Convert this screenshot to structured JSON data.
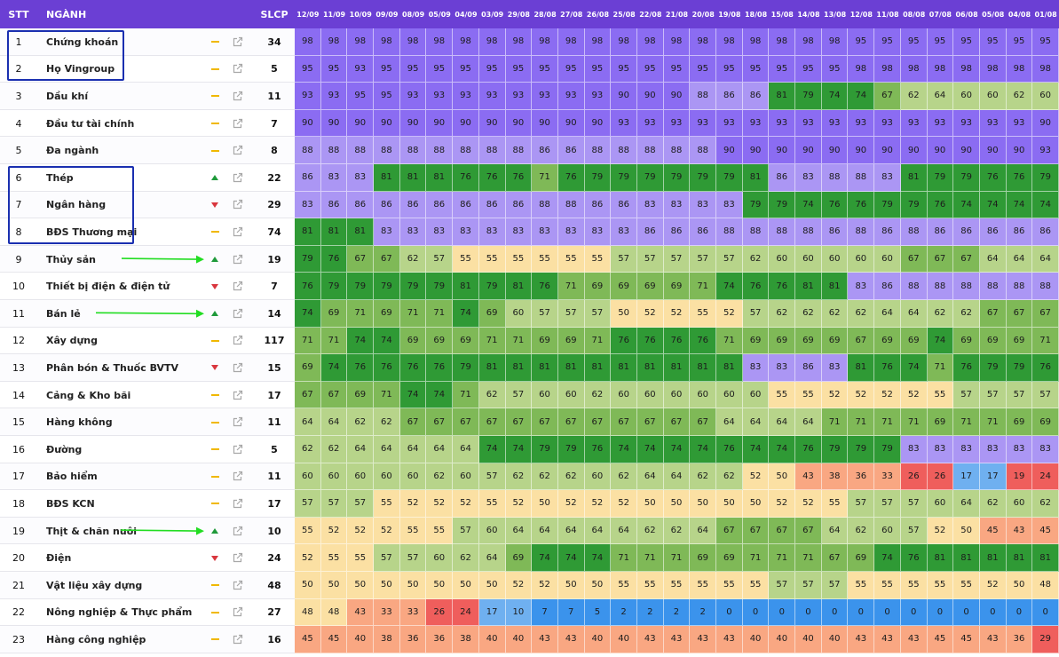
{
  "header": {
    "stt": "STT",
    "name": "NGÀNH",
    "slcp": "SLCP"
  },
  "dates": [
    "12/09",
    "11/09",
    "10/09",
    "09/09",
    "08/09",
    "05/09",
    "04/09",
    "03/09",
    "29/08",
    "28/08",
    "27/08",
    "26/08",
    "25/08",
    "22/08",
    "21/08",
    "20/08",
    "19/08",
    "18/08",
    "15/08",
    "14/08",
    "13/08",
    "12/08",
    "11/08",
    "08/08",
    "07/08",
    "06/08",
    "05/08",
    "04/08",
    "01/08"
  ],
  "colors": {
    "purple_top": "#8b6cf2",
    "purple": "#ab96f4",
    "green_dark": "#2f9a35",
    "green_mid": "#7fb957",
    "green_light": "#b7d48a",
    "cream": "#fbe0a3",
    "salmon": "#f9a782",
    "red": "#ef5e5c",
    "blue_light": "#6fb0f0",
    "blue": "#3b93ec",
    "trend_up": "#1f9a3a",
    "trend_down": "#d9363e",
    "trend_flat": "#f0b800",
    "header_bg": "#6b3fd4",
    "highlight_box": "#1a2fb0",
    "arrow": "#22dd22"
  },
  "icons": {
    "trend_flat": "minus-icon",
    "trend_up": "triangle-up-icon",
    "trend_down": "triangle-down-icon",
    "link": "external-link-icon"
  },
  "rows": [
    {
      "stt": "1",
      "name": "Chứng khoán",
      "trend": "flat",
      "slcp": "34",
      "scores": [
        98,
        98,
        98,
        98,
        98,
        98,
        98,
        98,
        98,
        98,
        98,
        98,
        98,
        98,
        98,
        98,
        98,
        98,
        98,
        98,
        98,
        95,
        95,
        95,
        95,
        95,
        95,
        95,
        95
      ]
    },
    {
      "stt": "2",
      "name": "Họ Vingroup",
      "trend": "flat",
      "slcp": "5",
      "scores": [
        95,
        95,
        93,
        95,
        95,
        95,
        95,
        95,
        95,
        95,
        95,
        95,
        95,
        95,
        95,
        95,
        95,
        95,
        95,
        95,
        95,
        98,
        98,
        98,
        98,
        98,
        98,
        98,
        98
      ]
    },
    {
      "stt": "3",
      "name": "Dầu khí",
      "trend": "flat",
      "slcp": "11",
      "scores": [
        93,
        93,
        95,
        95,
        93,
        93,
        93,
        93,
        93,
        93,
        93,
        93,
        90,
        90,
        90,
        88,
        86,
        86,
        81,
        79,
        74,
        74,
        67,
        62,
        64,
        60,
        60,
        62,
        60
      ]
    },
    {
      "stt": "4",
      "name": "Đầu tư tài chính",
      "trend": "flat",
      "slcp": "7",
      "scores": [
        90,
        90,
        90,
        90,
        90,
        90,
        90,
        90,
        90,
        90,
        90,
        90,
        93,
        93,
        93,
        93,
        93,
        93,
        93,
        93,
        93,
        93,
        93,
        93,
        93,
        93,
        93,
        93,
        90
      ]
    },
    {
      "stt": "5",
      "name": "Đa ngành",
      "trend": "flat",
      "slcp": "8",
      "scores": [
        88,
        88,
        88,
        88,
        88,
        88,
        88,
        88,
        88,
        86,
        86,
        88,
        88,
        88,
        88,
        88,
        90,
        90,
        90,
        90,
        90,
        90,
        90,
        90,
        90,
        90,
        90,
        90,
        93
      ]
    },
    {
      "stt": "6",
      "name": "Thép",
      "trend": "up",
      "slcp": "22",
      "scores": [
        86,
        83,
        83,
        81,
        81,
        81,
        76,
        76,
        76,
        71,
        76,
        79,
        79,
        79,
        79,
        79,
        79,
        81,
        86,
        83,
        88,
        88,
        83,
        81,
        79,
        79,
        76,
        76,
        79
      ]
    },
    {
      "stt": "7",
      "name": "Ngân hàng",
      "trend": "down",
      "slcp": "29",
      "scores": [
        83,
        86,
        86,
        86,
        86,
        86,
        86,
        86,
        86,
        88,
        88,
        86,
        86,
        83,
        83,
        83,
        83,
        79,
        79,
        74,
        76,
        76,
        79,
        79,
        76,
        74,
        74,
        74,
        74
      ]
    },
    {
      "stt": "8",
      "name": "BĐS Thương mại",
      "trend": "flat",
      "slcp": "74",
      "scores": [
        81,
        81,
        81,
        83,
        83,
        83,
        83,
        83,
        83,
        83,
        83,
        83,
        83,
        86,
        86,
        86,
        88,
        88,
        88,
        88,
        86,
        88,
        86,
        88,
        86,
        86,
        86,
        86,
        86
      ]
    },
    {
      "stt": "9",
      "name": "Thủy sản",
      "trend": "up",
      "slcp": "19",
      "scores": [
        79,
        76,
        67,
        67,
        62,
        57,
        55,
        55,
        55,
        55,
        55,
        55,
        57,
        57,
        57,
        57,
        57,
        62,
        60,
        60,
        60,
        60,
        60,
        67,
        67,
        67,
        64,
        64,
        64
      ]
    },
    {
      "stt": "10",
      "name": "Thiết bị điện & điện tử",
      "trend": "down",
      "slcp": "7",
      "scores": [
        76,
        79,
        79,
        79,
        79,
        79,
        81,
        79,
        81,
        76,
        71,
        69,
        69,
        69,
        69,
        71,
        74,
        76,
        76,
        81,
        81,
        83,
        86,
        88,
        88,
        88,
        88,
        88,
        88
      ]
    },
    {
      "stt": "11",
      "name": "Bán lẻ",
      "trend": "up",
      "slcp": "14",
      "scores": [
        74,
        69,
        71,
        69,
        71,
        71,
        74,
        69,
        60,
        57,
        57,
        57,
        50,
        52,
        52,
        55,
        52,
        57,
        62,
        62,
        62,
        62,
        64,
        64,
        62,
        62,
        67,
        67,
        67
      ]
    },
    {
      "stt": "12",
      "name": "Xây dựng",
      "trend": "flat",
      "slcp": "117",
      "scores": [
        71,
        71,
        74,
        74,
        69,
        69,
        69,
        71,
        71,
        69,
        69,
        71,
        76,
        76,
        76,
        76,
        71,
        69,
        69,
        69,
        69,
        67,
        69,
        69,
        74,
        69,
        69,
        69,
        71
      ]
    },
    {
      "stt": "13",
      "name": "Phân bón & Thuốc BVTV",
      "trend": "down",
      "slcp": "15",
      "scores": [
        69,
        74,
        76,
        76,
        76,
        76,
        79,
        81,
        81,
        81,
        81,
        81,
        81,
        81,
        81,
        81,
        81,
        83,
        83,
        86,
        83,
        81,
        76,
        74,
        71,
        76,
        79,
        79,
        76
      ]
    },
    {
      "stt": "14",
      "name": "Cảng & Kho bãi",
      "trend": "flat",
      "slcp": "17",
      "scores": [
        67,
        67,
        69,
        71,
        74,
        74,
        71,
        62,
        57,
        60,
        60,
        62,
        60,
        60,
        60,
        60,
        60,
        60,
        55,
        55,
        52,
        52,
        52,
        52,
        55,
        57,
        57,
        57,
        57
      ]
    },
    {
      "stt": "15",
      "name": "Hàng không",
      "trend": "flat",
      "slcp": "11",
      "scores": [
        64,
        64,
        62,
        62,
        67,
        67,
        67,
        67,
        67,
        67,
        67,
        67,
        67,
        67,
        67,
        67,
        64,
        64,
        64,
        64,
        71,
        71,
        71,
        71,
        69,
        71,
        71,
        69,
        69
      ]
    },
    {
      "stt": "16",
      "name": "Đường",
      "trend": "flat",
      "slcp": "5",
      "scores": [
        62,
        62,
        64,
        64,
        64,
        64,
        64,
        74,
        74,
        79,
        79,
        76,
        74,
        74,
        74,
        74,
        76,
        74,
        74,
        76,
        79,
        79,
        79,
        83,
        83,
        83,
        83,
        83,
        83
      ]
    },
    {
      "stt": "17",
      "name": "Bảo hiểm",
      "trend": "flat",
      "slcp": "11",
      "scores": [
        60,
        60,
        60,
        60,
        60,
        62,
        60,
        57,
        62,
        62,
        62,
        60,
        62,
        64,
        64,
        62,
        62,
        52,
        50,
        43,
        38,
        36,
        33,
        26,
        26,
        17,
        17,
        19,
        24
      ]
    },
    {
      "stt": "18",
      "name": "BĐS KCN",
      "trend": "flat",
      "slcp": "17",
      "scores": [
        57,
        57,
        57,
        55,
        52,
        52,
        52,
        55,
        52,
        50,
        52,
        52,
        52,
        50,
        50,
        50,
        50,
        50,
        52,
        52,
        55,
        57,
        57,
        57,
        60,
        64,
        62,
        60,
        62
      ]
    },
    {
      "stt": "19",
      "name": "Thịt & chăn nuôi",
      "trend": "up",
      "slcp": "10",
      "scores": [
        55,
        52,
        52,
        52,
        55,
        55,
        57,
        60,
        64,
        64,
        64,
        64,
        64,
        62,
        62,
        64,
        67,
        67,
        67,
        67,
        64,
        62,
        60,
        57,
        52,
        50,
        45,
        43,
        45
      ]
    },
    {
      "stt": "20",
      "name": "Điện",
      "trend": "down",
      "slcp": "24",
      "scores": [
        52,
        55,
        55,
        57,
        57,
        60,
        62,
        64,
        69,
        74,
        74,
        74,
        71,
        71,
        71,
        69,
        69,
        71,
        71,
        71,
        67,
        69,
        74,
        76,
        81,
        81,
        81,
        81,
        81
      ]
    },
    {
      "stt": "21",
      "name": "Vật liệu xây dựng",
      "trend": "flat",
      "slcp": "48",
      "scores": [
        50,
        50,
        50,
        50,
        50,
        50,
        50,
        50,
        52,
        52,
        50,
        50,
        55,
        55,
        55,
        55,
        55,
        55,
        57,
        57,
        57,
        55,
        55,
        55,
        55,
        55,
        52,
        50,
        48
      ]
    },
    {
      "stt": "22",
      "name": "Nông nghiệp & Thực phẩm",
      "trend": "flat",
      "slcp": "27",
      "scores": [
        48,
        48,
        43,
        33,
        33,
        26,
        24,
        17,
        10,
        7,
        7,
        5,
        2,
        2,
        2,
        2,
        0,
        0,
        0,
        0,
        0,
        0,
        0,
        0,
        0,
        0,
        0,
        0,
        0
      ]
    },
    {
      "stt": "23",
      "name": "Hàng công nghiệp",
      "trend": "flat",
      "slcp": "16",
      "scores": [
        45,
        45,
        40,
        38,
        36,
        36,
        38,
        40,
        40,
        43,
        43,
        40,
        40,
        43,
        43,
        43,
        43,
        40,
        40,
        40,
        40,
        43,
        43,
        43,
        45,
        45,
        43,
        36,
        29
      ]
    }
  ]
}
